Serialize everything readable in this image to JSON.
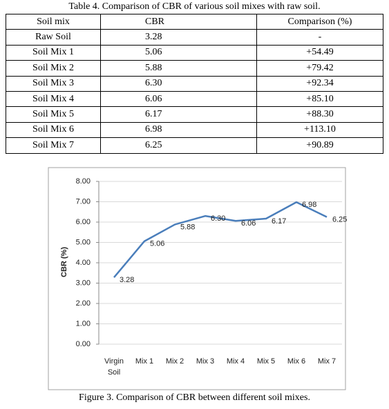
{
  "table": {
    "caption": "Table 4. Comparison of CBR of various soil mixes with raw soil.",
    "header": [
      "Soil mix",
      "CBR",
      "Comparison (%)"
    ],
    "rows": [
      [
        "Raw Soil",
        "3.28",
        "-"
      ],
      [
        "Soil Mix 1",
        "5.06",
        "+54.49"
      ],
      [
        "Soil Mix 2",
        "5.88",
        "+79.42"
      ],
      [
        "Soil Mix 3",
        "6.30",
        "+92.34"
      ],
      [
        "Soil Mix 4",
        "6.06",
        "+85.10"
      ],
      [
        "Soil Mix 5",
        "6.17",
        "+88.30"
      ],
      [
        "Soil Mix 6",
        "6.98",
        "+113.10"
      ],
      [
        "Soil Mix 7",
        "6.25",
        "+90.89"
      ]
    ]
  },
  "chart_data": {
    "type": "line",
    "y_label": "CBR (%)",
    "categories": [
      "Virgin Soil",
      "Mix 1",
      "Mix 2",
      "Mix 3",
      "Mix 4",
      "Mix 5",
      "Mix 6",
      "Mix 7"
    ],
    "values": [
      3.28,
      5.06,
      5.88,
      6.3,
      6.06,
      6.17,
      6.98,
      6.25
    ],
    "value_labels": [
      "3.28",
      "5.06",
      "5.88",
      "6.30",
      "6.06",
      "6.17",
      "6.98",
      "6.25"
    ],
    "color": "#4a7ebb",
    "ylim": [
      0,
      8
    ],
    "yticks": [
      {
        "value": 0,
        "label": "0.00"
      },
      {
        "value": 1,
        "label": "1.00"
      },
      {
        "value": 2,
        "label": "2.00"
      },
      {
        "value": 3,
        "label": "3.00"
      },
      {
        "value": 4,
        "label": "4.00"
      },
      {
        "value": 5,
        "label": "5.00"
      },
      {
        "value": 6,
        "label": "6.00"
      },
      {
        "value": 7,
        "label": "7.00"
      },
      {
        "value": 8,
        "label": "8.00"
      }
    ],
    "grid": true
  },
  "figure_caption": "Figure 3. Comparison of CBR between different soil mixes."
}
